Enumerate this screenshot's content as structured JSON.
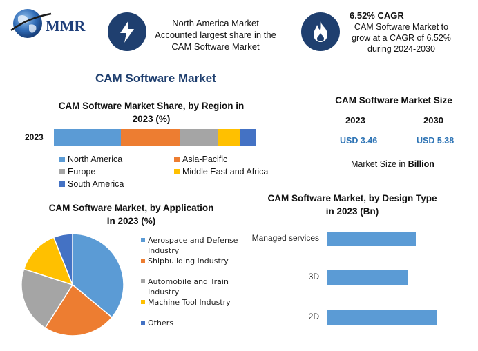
{
  "header": {
    "logo_text": "MMR",
    "highlight1_lines": [
      "North America Market",
      "Accounted largest share in the",
      "CAM Software Market"
    ],
    "highlight2_title": "6.52% CAGR",
    "highlight2_lines": [
      "CAM Software Market to",
      "grow at a CAGR of 6.52%",
      "during 2024-2030"
    ]
  },
  "page_title": "CAM Software Market",
  "market_size": {
    "title": "CAM Software Market Size",
    "year1": "2023",
    "year2": "2030",
    "value1": "USD 3.46",
    "value2": "USD 5.38",
    "note_prefix": "Market Size in ",
    "note_bold": "Billion"
  },
  "chart_data": [
    {
      "type": "bar",
      "stacked": true,
      "orientation": "horizontal",
      "title_lines": [
        "CAM Software Market Share, by Region in",
        "2023 (%)"
      ],
      "categories": [
        "2023"
      ],
      "series": [
        {
          "name": "North America",
          "values": [
            33
          ],
          "color": "#5b9bd5"
        },
        {
          "name": "Asia-Pacific",
          "values": [
            29
          ],
          "color": "#ed7d31"
        },
        {
          "name": "Europe",
          "values": [
            19
          ],
          "color": "#a5a5a5"
        },
        {
          "name": "Middle East and Africa",
          "values": [
            11
          ],
          "color": "#ffc000"
        },
        {
          "name": "South America",
          "values": [
            8
          ],
          "color": "#4472c4"
        }
      ]
    },
    {
      "type": "pie",
      "title_lines": [
        "CAM Software Market, by Application",
        "In 2023 (%)"
      ],
      "slices": [
        {
          "label_lines": [
            "Aerospace and Defense",
            "Industry"
          ],
          "value": 36,
          "color": "#5b9bd5"
        },
        {
          "label_lines": [
            "Shipbuilding Industry"
          ],
          "value": 23,
          "color": "#ed7d31"
        },
        {
          "label_lines": [
            "Automobile and Train",
            "Industry"
          ],
          "value": 21,
          "color": "#a5a5a5"
        },
        {
          "label_lines": [
            "Machine Tool Industry"
          ],
          "value": 14,
          "color": "#ffc000"
        },
        {
          "label_lines": [
            "Others"
          ],
          "value": 6,
          "color": "#4472c4"
        }
      ]
    },
    {
      "type": "bar",
      "orientation": "horizontal",
      "title_lines": [
        "CAM Software Market, by Design Type",
        "in 2023 (Bn)"
      ],
      "categories": [
        "Managed services",
        "3D",
        "2D"
      ],
      "values": [
        1.15,
        1.05,
        1.42
      ],
      "xlim": [
        0,
        1.8
      ],
      "color": "#5b9bd5"
    }
  ]
}
